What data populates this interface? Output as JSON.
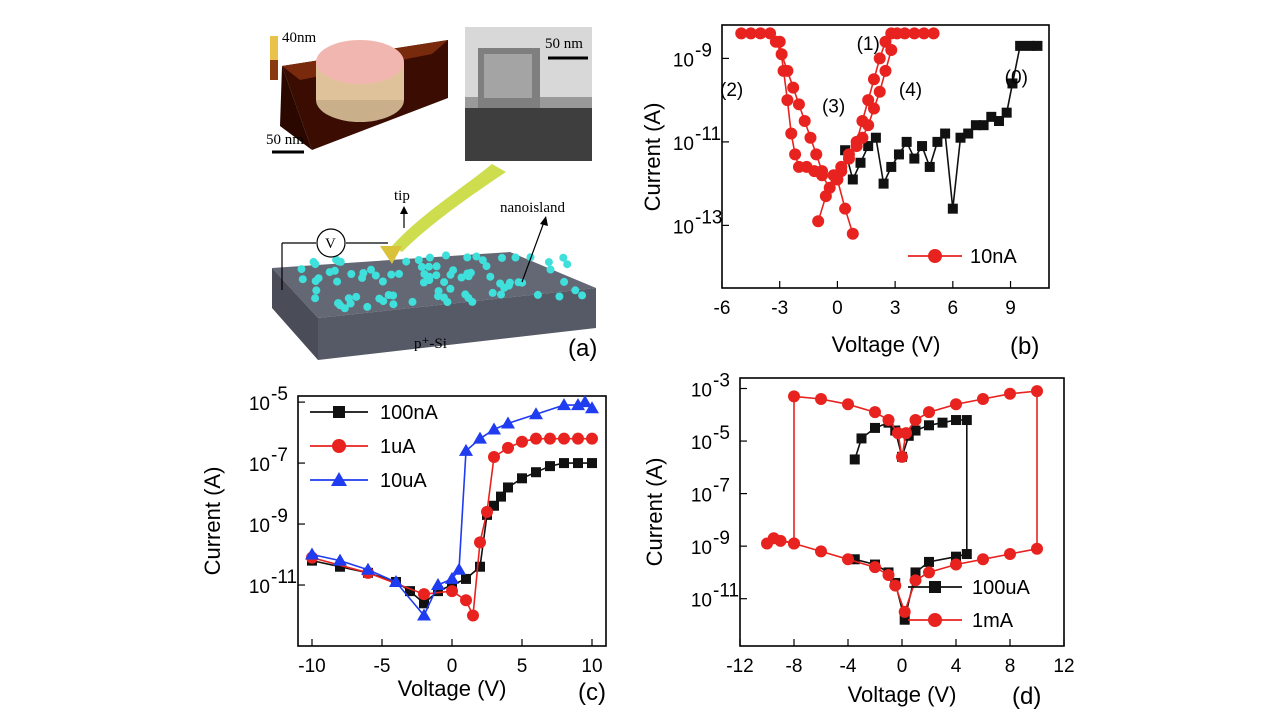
{
  "figure": {
    "panel_a": {
      "label": "(a)",
      "afm_height_label": "40nm",
      "afm_scale_label": "50 nm",
      "tem_scale_label": "50 nm",
      "tip_label": "tip",
      "nanoisland_label": "nanoisland",
      "voltmeter_label": "V",
      "substrate_label": "p⁺-Si",
      "colors": {
        "substrate": "#565a66",
        "dots": "#3fe0dc",
        "beam": "#c8d93a",
        "afm_top": "#f2b6b0",
        "afm_base": "#5a1a08"
      }
    }
  },
  "chart_data": [
    {
      "panel": "b",
      "type": "scatter",
      "label": "(b)",
      "xlabel": "Voltage (V)",
      "ylabel": "Current (A)",
      "xlim": [
        -6,
        11
      ],
      "ylim_log10": [
        -14.5,
        -8.2
      ],
      "xticks": [
        -6,
        -3,
        0,
        3,
        6,
        9
      ],
      "xtick_labels": [
        "-6",
        "-3",
        "0",
        "3",
        "6",
        "9"
      ],
      "yticks_log10": [
        -13,
        -11,
        -9
      ],
      "ytick_labels": [
        "10",
        "10",
        "10"
      ],
      "ytick_exps": [
        "-13",
        "-11",
        "-9"
      ],
      "annotations": [
        {
          "text": "(0)",
          "x": 9.3,
          "y": -9.6
        },
        {
          "text": "(1)",
          "x": 1.6,
          "y": -8.8
        },
        {
          "text": "(2)",
          "x": -5.5,
          "y": -9.9
        },
        {
          "text": "(3)",
          "x": -0.2,
          "y": -10.3
        },
        {
          "text": "(4)",
          "x": 3.8,
          "y": -9.9
        }
      ],
      "series": [
        {
          "name": "sweep (0)",
          "color": "#111111",
          "marker": "square",
          "legend": false,
          "x": [
            0.4,
            0.8,
            1.2,
            1.6,
            2.0,
            2.4,
            2.8,
            3.2,
            3.6,
            4.0,
            4.4,
            4.8,
            5.2,
            5.6,
            6.0,
            6.4,
            6.8,
            7.2,
            7.6,
            8.0,
            8.4,
            8.8,
            9.1,
            9.5,
            10.0,
            10.4
          ],
          "y": [
            -11.2,
            -11.9,
            -11.5,
            -11.1,
            -10.9,
            -12.0,
            -11.6,
            -11.3,
            -11.0,
            -11.4,
            -11.1,
            -11.6,
            -11.0,
            -10.8,
            -12.6,
            -10.9,
            -10.8,
            -10.6,
            -10.6,
            -10.4,
            -10.5,
            -10.3,
            -9.6,
            -8.7,
            -8.7,
            -8.7
          ]
        },
        {
          "name": "sweep (1)",
          "color": "#e8231f",
          "marker": "circle",
          "legend": false,
          "x": [
            0.2,
            0.6,
            1.0,
            1.3,
            1.6,
            1.9,
            2.2,
            2.5,
            2.8,
            3.1,
            3.5,
            4.0,
            4.5,
            5.0
          ],
          "y": [
            -11.7,
            -11.3,
            -11.0,
            -10.5,
            -10.0,
            -9.5,
            -9.0,
            -8.6,
            -8.4,
            -8.4,
            -8.4,
            -8.4,
            -8.4,
            -8.4
          ]
        },
        {
          "name": "sweep (2)",
          "color": "#e8231f",
          "marker": "circle",
          "legend": false,
          "x": [
            -5.0,
            -4.5,
            -4.0,
            -3.5,
            -3.2,
            -2.9,
            -2.6,
            -2.3,
            -2.0,
            -1.7,
            -1.4,
            -1.1,
            -0.8
          ],
          "y": [
            -8.4,
            -8.4,
            -8.4,
            -8.4,
            -8.6,
            -8.9,
            -9.3,
            -9.7,
            -10.1,
            -10.5,
            -10.9,
            -11.3,
            -11.7
          ]
        },
        {
          "name": "sweep (3)",
          "color": "#e8231f",
          "marker": "circle",
          "legend": false,
          "x": [
            -3.0,
            -2.8,
            -2.6,
            -2.4,
            -2.2,
            -2.0,
            -1.6,
            -1.2,
            -0.8,
            -0.4,
            0.0,
            0.4,
            0.8
          ],
          "y": [
            -8.6,
            -9.3,
            -10.0,
            -10.8,
            -11.3,
            -11.6,
            -11.6,
            -11.7,
            -11.8,
            -12.1,
            -11.9,
            -12.6,
            -13.2
          ]
        },
        {
          "name": "10nA",
          "color": "#e8231f",
          "marker": "circle",
          "legend": true,
          "x": [
            -1.0,
            -0.6,
            -0.2,
            0.2,
            0.6,
            1.0,
            1.3,
            1.6,
            1.9,
            2.2,
            2.5,
            2.8
          ],
          "y": [
            -12.9,
            -12.3,
            -11.8,
            -11.6,
            -11.4,
            -11.1,
            -10.9,
            -10.6,
            -10.2,
            -9.8,
            -9.3,
            -8.8
          ]
        }
      ]
    },
    {
      "panel": "c",
      "type": "scatter",
      "label": "(c)",
      "xlabel": "Voltage (V)",
      "ylabel": "Current (A)",
      "xlim": [
        -11,
        11
      ],
      "ylim_log10": [
        -13,
        -4.8
      ],
      "xticks": [
        -10,
        -5,
        0,
        5,
        10
      ],
      "xtick_labels": [
        "-10",
        "-5",
        "0",
        "5",
        "10"
      ],
      "yticks_log10": [
        -11,
        -9,
        -7,
        -5
      ],
      "ytick_labels": [
        "10",
        "10",
        "10",
        "10"
      ],
      "ytick_exps": [
        "-11",
        "-9",
        "-7",
        "-5"
      ],
      "series": [
        {
          "name": "100nA",
          "color": "#111111",
          "marker": "square",
          "legend": true,
          "x": [
            -10,
            -8,
            -6,
            -4,
            -3,
            -2,
            -1,
            0,
            1,
            2,
            2.5,
            3,
            3.5,
            4,
            5,
            6,
            7,
            8,
            9,
            10
          ],
          "y": [
            -10.2,
            -10.4,
            -10.6,
            -10.9,
            -11.2,
            -11.6,
            -11.2,
            -11.0,
            -10.8,
            -10.4,
            -8.7,
            -8.4,
            -8.1,
            -7.8,
            -7.5,
            -7.3,
            -7.1,
            -7.0,
            -7.0,
            -7.0
          ]
        },
        {
          "name": "1uA",
          "color": "#e8231f",
          "marker": "circle",
          "legend": true,
          "x": [
            -10,
            -6,
            -2,
            0,
            1,
            1.5,
            2,
            2.5,
            3,
            4,
            5,
            6,
            7,
            8,
            9,
            10
          ],
          "y": [
            -10.1,
            -10.6,
            -11.3,
            -11.2,
            -11.5,
            -12.0,
            -9.6,
            -8.6,
            -6.8,
            -6.5,
            -6.3,
            -6.2,
            -6.2,
            -6.2,
            -6.2,
            -6.2
          ]
        },
        {
          "name": "10uA",
          "color": "#1f3cf0",
          "marker": "triangle",
          "legend": true,
          "x": [
            -10,
            -8,
            -6,
            -4,
            -2,
            -1,
            0,
            0.5,
            1,
            2,
            3,
            4,
            6,
            8,
            9,
            9.5,
            10
          ],
          "y": [
            -10.0,
            -10.2,
            -10.5,
            -10.9,
            -12.0,
            -11.0,
            -10.8,
            -10.5,
            -6.6,
            -6.2,
            -5.9,
            -5.7,
            -5.4,
            -5.1,
            -5.1,
            -5.0,
            -5.2
          ]
        }
      ]
    },
    {
      "panel": "d",
      "type": "scatter",
      "label": "(d)",
      "xlabel": "Voltage (V)",
      "ylabel": "Current (A)",
      "xlim": [
        -12,
        12
      ],
      "ylim_log10": [
        -12.8,
        -2.6
      ],
      "xticks": [
        -12,
        -8,
        -4,
        0,
        4,
        8,
        12
      ],
      "xtick_labels": [
        "-12",
        "-8",
        "-4",
        "0",
        "4",
        "8",
        "12"
      ],
      "yticks_log10": [
        -11,
        -9,
        -7,
        -5,
        -3
      ],
      "ytick_labels": [
        "10",
        "10",
        "10",
        "10",
        "10"
      ],
      "ytick_exps": [
        "-11",
        "-9",
        "-7",
        "-5",
        "-3"
      ],
      "series": [
        {
          "name": "100uA",
          "color": "#111111",
          "marker": "square",
          "legend": true,
          "x": [
            -3.5,
            -3.0,
            -2.0,
            -1.0,
            -0.5,
            0,
            0.5,
            1.0,
            2.0,
            3.0,
            4.0,
            4.8,
            4.8,
            4.0,
            2.0,
            1.0,
            0.2,
            -0.5,
            -1.0,
            -2.0,
            -3.5
          ],
          "y": [
            -5.7,
            -4.9,
            -4.5,
            -4.3,
            -4.6,
            -5.6,
            -4.8,
            -4.6,
            -4.4,
            -4.3,
            -4.2,
            -4.2,
            -9.3,
            -9.4,
            -9.6,
            -10.0,
            -11.8,
            -10.4,
            -10.0,
            -9.7,
            -9.5
          ]
        },
        {
          "name": "1mA",
          "color": "#e8231f",
          "marker": "circle",
          "legend": true,
          "x": [
            -10,
            -9,
            -8,
            -8,
            -6,
            -4,
            -2,
            -1,
            -0.3,
            0,
            0.3,
            1,
            2,
            4,
            6,
            8,
            10,
            10,
            8,
            6,
            4,
            2,
            1,
            0.2,
            -0.5,
            -1,
            -2,
            -4,
            -6,
            -8,
            -9.5
          ],
          "y": [
            -8.9,
            -8.8,
            -8.9,
            -3.3,
            -3.4,
            -3.6,
            -3.9,
            -4.2,
            -4.7,
            -5.6,
            -4.7,
            -4.2,
            -3.9,
            -3.6,
            -3.4,
            -3.2,
            -3.1,
            -9.1,
            -9.3,
            -9.5,
            -9.7,
            -10.0,
            -10.3,
            -11.5,
            -10.5,
            -10.1,
            -9.8,
            -9.5,
            -9.2,
            -8.9,
            -8.7
          ]
        }
      ]
    }
  ]
}
